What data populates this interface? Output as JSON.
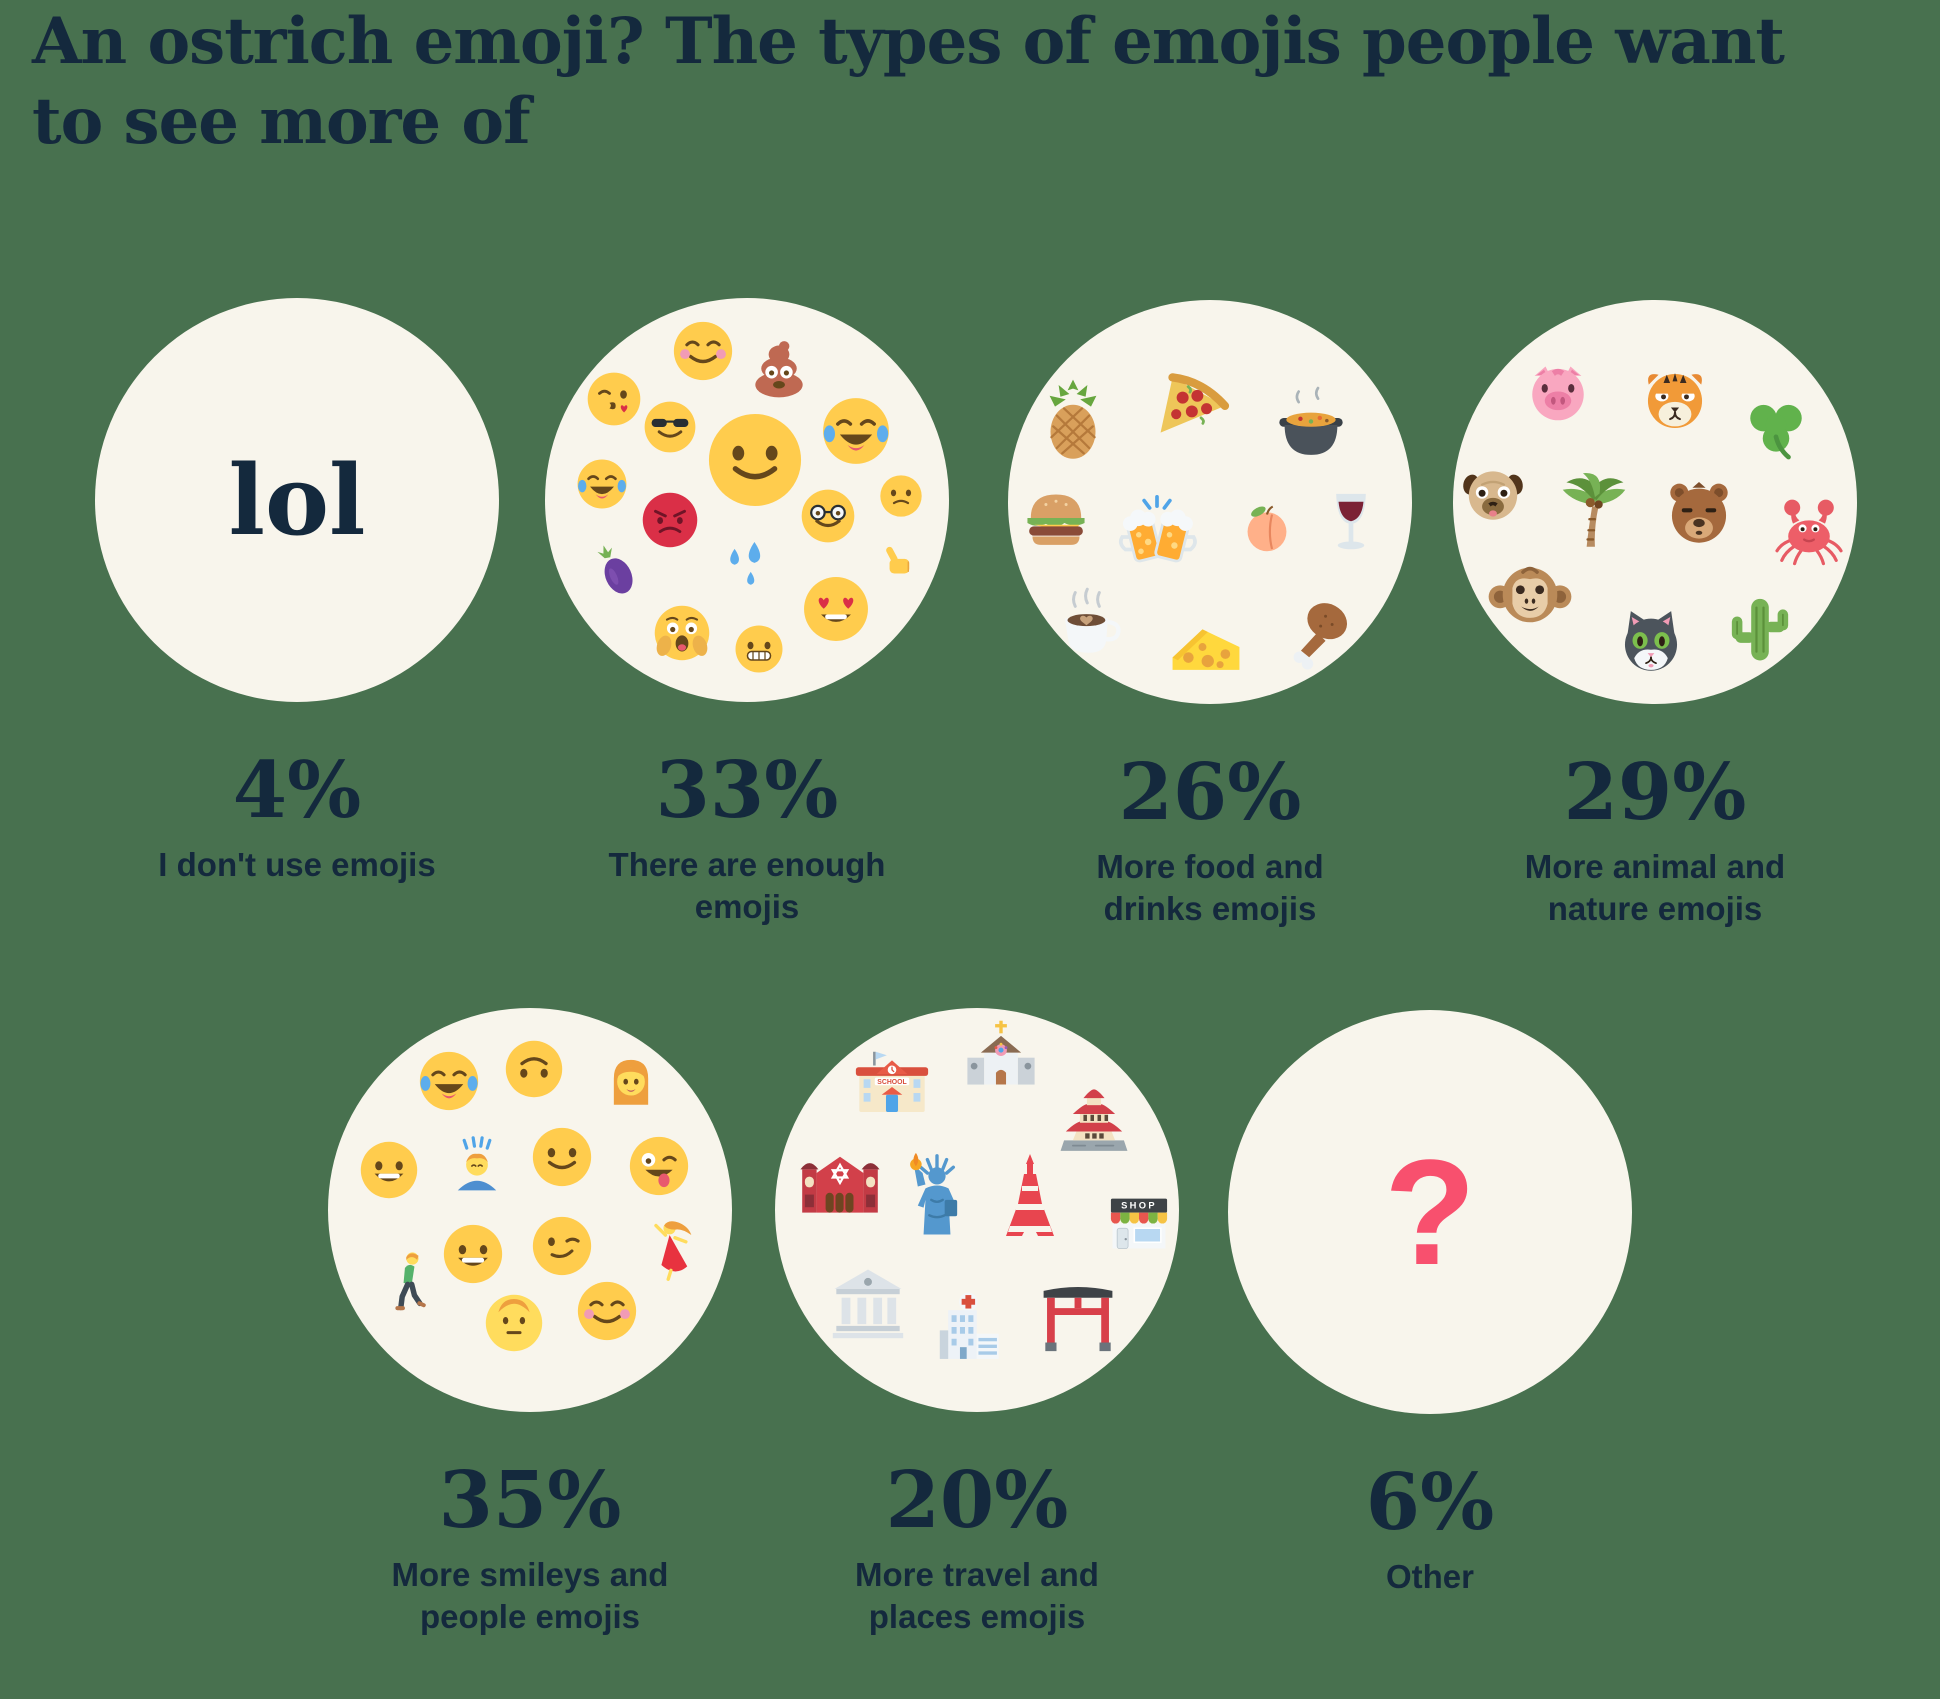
{
  "title": {
    "full": "An ostrich emoji? The types of emojis people want to see more of",
    "lines": [
      "An ostrich emoji? The types of emojis people want",
      "to see more of"
    ]
  },
  "colors": {
    "background": "#48714F",
    "circle_fill": "#F8F5EC",
    "text_navy": "#14293D",
    "question_mark_pink": "#F8506E"
  },
  "chart_data": {
    "type": "pictogram",
    "title": "An ostrich emoji? The types of emojis people want to see more of",
    "legend_position": "none",
    "grid": false,
    "categories": [
      {
        "pct": "4%",
        "value": 4,
        "label": "I don't use emojis",
        "center_text": "lol",
        "emojis": []
      },
      {
        "pct": "33%",
        "value": 33,
        "label": "There are enough emojis",
        "emojis": [
          {
            "name": "smiling-blush-emoji",
            "kind": "blush-smile",
            "x": 39,
            "y": 13,
            "s": 62
          },
          {
            "name": "poop-emoji",
            "kind": "poop",
            "x": 58,
            "y": 17,
            "s": 74
          },
          {
            "name": "kissing-heart-emoji",
            "kind": "kiss-heart",
            "x": 17,
            "y": 25,
            "s": 56
          },
          {
            "name": "sunglasses-emoji",
            "kind": "sunglasses",
            "x": 31,
            "y": 32,
            "s": 54
          },
          {
            "name": "joy-emoji",
            "kind": "joy",
            "x": 77,
            "y": 33,
            "s": 70
          },
          {
            "name": "smiley-emoji",
            "kind": "smiley",
            "x": 52,
            "y": 40,
            "s": 98
          },
          {
            "name": "joy-emoji",
            "kind": "joy",
            "x": 14,
            "y": 46,
            "s": 52
          },
          {
            "name": "angry-emoji",
            "kind": "angry",
            "x": 31,
            "y": 55,
            "s": 58
          },
          {
            "name": "nerd-emoji",
            "kind": "nerd",
            "x": 70,
            "y": 54,
            "s": 56
          },
          {
            "name": "frowning-emoji",
            "kind": "frown",
            "x": 88,
            "y": 49,
            "s": 44
          },
          {
            "name": "eggplant-emoji",
            "kind": "eggplant",
            "x": 17,
            "y": 67,
            "s": 68,
            "rot": -24
          },
          {
            "name": "sweat-drops-emoji",
            "kind": "sweat",
            "x": 50,
            "y": 66,
            "s": 62
          },
          {
            "name": "thumbs-up-emoji",
            "kind": "thumbs",
            "x": 88,
            "y": 65,
            "s": 52
          },
          {
            "name": "scream-emoji",
            "kind": "scream",
            "x": 34,
            "y": 83,
            "s": 58
          },
          {
            "name": "grimacing-emoji",
            "kind": "grimace",
            "x": 53,
            "y": 87,
            "s": 50
          },
          {
            "name": "heart-eyes-emoji",
            "kind": "heart-eyes",
            "x": 72,
            "y": 77,
            "s": 68
          }
        ]
      },
      {
        "pct": "26%",
        "value": 26,
        "label": "More food and drinks emojis",
        "emojis": [
          {
            "name": "pineapple-emoji",
            "kind": "pineapple",
            "x": 16,
            "y": 30,
            "s": 90
          },
          {
            "name": "pizza-emoji",
            "kind": "pizza",
            "x": 45,
            "y": 26,
            "s": 92
          },
          {
            "name": "pot-of-food-emoji",
            "kind": "pot",
            "x": 75,
            "y": 31,
            "s": 88
          },
          {
            "name": "burger-emoji",
            "kind": "burger",
            "x": 12,
            "y": 54,
            "s": 84
          },
          {
            "name": "clinking-beers-emoji",
            "kind": "beers",
            "x": 37,
            "y": 57,
            "s": 92
          },
          {
            "name": "peach-emoji",
            "kind": "peach",
            "x": 64,
            "y": 56,
            "s": 72
          },
          {
            "name": "wine-glass-emoji",
            "kind": "wine",
            "x": 85,
            "y": 55,
            "s": 78
          },
          {
            "name": "coffee-emoji",
            "kind": "coffee",
            "x": 20,
            "y": 81,
            "s": 86
          },
          {
            "name": "cheese-emoji",
            "kind": "cheese",
            "x": 49,
            "y": 86,
            "s": 88
          },
          {
            "name": "poultry-leg-emoji",
            "kind": "poultry",
            "x": 77,
            "y": 82,
            "s": 82
          }
        ]
      },
      {
        "pct": "29%",
        "value": 29,
        "label": "More animal and nature emojis",
        "emojis": [
          {
            "name": "pig-face-emoji",
            "kind": "pig",
            "x": 26,
            "y": 23,
            "s": 78
          },
          {
            "name": "tiger-face-emoji",
            "kind": "tiger",
            "x": 55,
            "y": 25,
            "s": 82
          },
          {
            "name": "shamrock-emoji",
            "kind": "shamrock",
            "x": 80,
            "y": 32,
            "s": 78
          },
          {
            "name": "pug-dog-emoji",
            "kind": "pug",
            "x": 10,
            "y": 48,
            "s": 78
          },
          {
            "name": "palm-tree-emoji",
            "kind": "palm",
            "x": 35,
            "y": 52,
            "s": 92
          },
          {
            "name": "bear-face-emoji",
            "kind": "bear",
            "x": 61,
            "y": 53,
            "s": 82
          },
          {
            "name": "crab-emoji",
            "kind": "crab",
            "x": 88,
            "y": 57,
            "s": 80
          },
          {
            "name": "monkey-emoji",
            "kind": "monkey",
            "x": 19,
            "y": 73,
            "s": 88
          },
          {
            "name": "cat-face-emoji",
            "kind": "cat",
            "x": 49,
            "y": 85,
            "s": 84
          },
          {
            "name": "cactus-emoji",
            "kind": "cactus",
            "x": 76,
            "y": 81,
            "s": 88
          }
        ]
      },
      {
        "pct": "35%",
        "value": 35,
        "label": "More smileys and people emojis",
        "emojis": [
          {
            "name": "laughing-tears-emoji",
            "kind": "joy",
            "x": 30,
            "y": 18,
            "s": 62
          },
          {
            "name": "upside-down-emoji",
            "kind": "upside",
            "x": 51,
            "y": 15,
            "s": 60
          },
          {
            "name": "woman-face-emoji",
            "kind": "woman",
            "x": 75,
            "y": 19,
            "s": 66
          },
          {
            "name": "grinning-emoji",
            "kind": "grin",
            "x": 15,
            "y": 40,
            "s": 60
          },
          {
            "name": "bowing-person-emoji",
            "kind": "bow",
            "x": 37,
            "y": 39,
            "s": 64
          },
          {
            "name": "slight-smile-emoji",
            "kind": "smiley",
            "x": 58,
            "y": 37,
            "s": 62
          },
          {
            "name": "winking-tongue-emoji",
            "kind": "zany",
            "x": 82,
            "y": 39,
            "s": 62
          },
          {
            "name": "walking-man-emoji",
            "kind": "walking",
            "x": 20,
            "y": 68,
            "s": 68
          },
          {
            "name": "grinning-big-emoji",
            "kind": "grin",
            "x": 36,
            "y": 61,
            "s": 62
          },
          {
            "name": "smirk-wink-emoji",
            "kind": "smirk-wink",
            "x": 58,
            "y": 59,
            "s": 62
          },
          {
            "name": "dancer-emoji",
            "kind": "dancer",
            "x": 86,
            "y": 60,
            "s": 68
          },
          {
            "name": "man-face-emoji",
            "kind": "man",
            "x": 46,
            "y": 78,
            "s": 60
          },
          {
            "name": "smiling-blush-emoji",
            "kind": "blush-smile",
            "x": 69,
            "y": 75,
            "s": 62
          }
        ]
      },
      {
        "pct": "20%",
        "value": 20,
        "label": "More travel and places emojis",
        "emojis": [
          {
            "name": "school-emoji",
            "kind": "school",
            "x": 29,
            "y": 18,
            "s": 86
          },
          {
            "name": "church-emoji",
            "kind": "church",
            "x": 56,
            "y": 12,
            "s": 84
          },
          {
            "name": "japanese-castle-emoji",
            "kind": "castle",
            "x": 79,
            "y": 28,
            "s": 88
          },
          {
            "name": "synagogue-emoji",
            "kind": "synagogue",
            "x": 16,
            "y": 43,
            "s": 90
          },
          {
            "name": "statue-of-liberty-emoji",
            "kind": "liberty",
            "x": 40,
            "y": 47,
            "s": 96
          },
          {
            "name": "tokyo-tower-emoji",
            "kind": "tokyo",
            "x": 63,
            "y": 47,
            "s": 100
          },
          {
            "name": "shop-emoji",
            "kind": "shop",
            "x": 90,
            "y": 53,
            "s": 78
          },
          {
            "name": "bank-emoji",
            "kind": "bank",
            "x": 23,
            "y": 73,
            "s": 88
          },
          {
            "name": "hospital-emoji",
            "kind": "hospital",
            "x": 47,
            "y": 79,
            "s": 84
          },
          {
            "name": "torii-gate-emoji",
            "kind": "torii",
            "x": 75,
            "y": 76,
            "s": 86
          }
        ]
      },
      {
        "pct": "6%",
        "value": 6,
        "label": "Other",
        "center_text": "?",
        "emojis": []
      }
    ]
  }
}
